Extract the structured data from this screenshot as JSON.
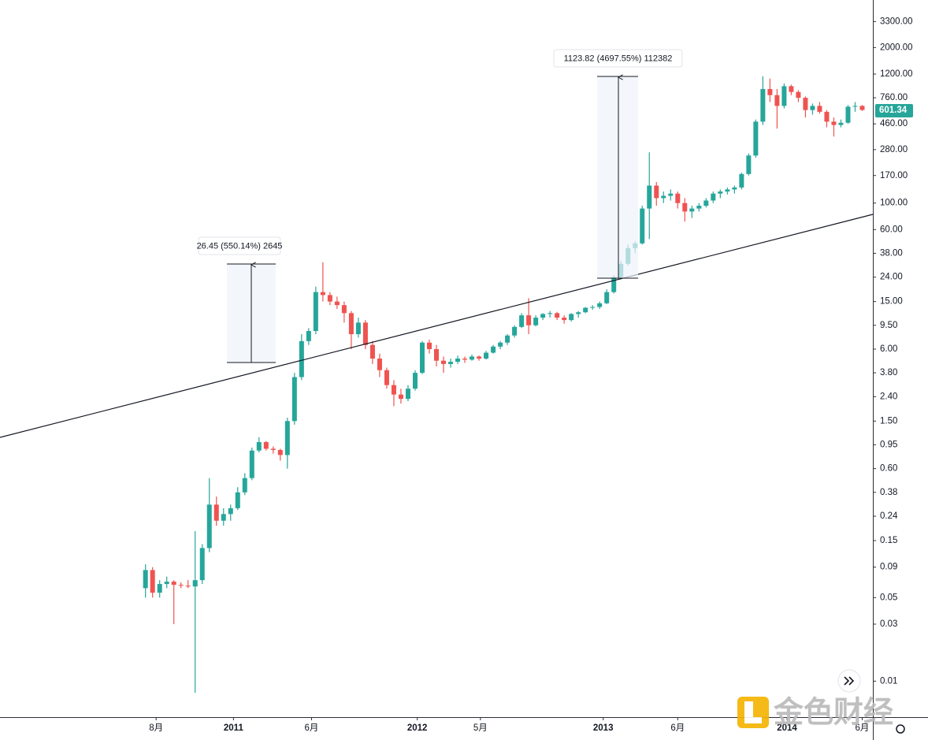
{
  "chart_data": {
    "type": "candlestick",
    "log_scale": true,
    "grid": false,
    "colors": {
      "up": "#26a69a",
      "down": "#ef5350"
    },
    "ylim": [
      0.005,
      5000
    ],
    "yticks": [
      {
        "value": 3300,
        "label": "3300.00"
      },
      {
        "value": 2000,
        "label": "2000.00"
      },
      {
        "value": 1200,
        "label": "1200.00"
      },
      {
        "value": 760,
        "label": "760.00"
      },
      {
        "value": 460,
        "label": "460.00"
      },
      {
        "value": 280,
        "label": "280.00"
      },
      {
        "value": 170,
        "label": "170.00"
      },
      {
        "value": 100,
        "label": "100.00"
      },
      {
        "value": 60,
        "label": "60.00"
      },
      {
        "value": 38,
        "label": "38.00"
      },
      {
        "value": 24,
        "label": "24.00"
      },
      {
        "value": 15,
        "label": "15.00"
      },
      {
        "value": 9.5,
        "label": "9.50"
      },
      {
        "value": 6,
        "label": "6.00"
      },
      {
        "value": 3.8,
        "label": "3.80"
      },
      {
        "value": 2.4,
        "label": "2.40"
      },
      {
        "value": 1.5,
        "label": "1.50"
      },
      {
        "value": 0.95,
        "label": "0.95"
      },
      {
        "value": 0.6,
        "label": "0.60"
      },
      {
        "value": 0.38,
        "label": "0.38"
      },
      {
        "value": 0.24,
        "label": "0.24"
      },
      {
        "value": 0.15,
        "label": "0.15"
      },
      {
        "value": 0.09,
        "label": "0.09"
      },
      {
        "value": 0.05,
        "label": "0.05"
      },
      {
        "value": 0.03,
        "label": "0.03"
      },
      {
        "value": 0.01,
        "label": "0.01"
      }
    ],
    "xlim": [
      -20.5,
      102.5
    ],
    "xticks": [
      {
        "value": 1.5,
        "label": "8月"
      },
      {
        "value": 12.4,
        "label": "2011"
      },
      {
        "value": 23.4,
        "label": "6月"
      },
      {
        "value": 38.3,
        "label": "2012"
      },
      {
        "value": 47.2,
        "label": "5月"
      },
      {
        "value": 64.5,
        "label": "2013"
      },
      {
        "value": 75,
        "label": "6月"
      },
      {
        "value": 90.4,
        "label": "2014"
      },
      {
        "value": 101,
        "label": "6月"
      }
    ],
    "candles": [
      [
        0.06,
        0.095,
        0.05,
        0.085
      ],
      [
        0.085,
        0.09,
        0.05,
        0.055
      ],
      [
        0.055,
        0.07,
        0.05,
        0.065
      ],
      [
        0.065,
        0.075,
        0.06,
        0.068
      ],
      [
        0.068,
        0.07,
        0.03,
        0.064
      ],
      [
        0.064,
        0.067,
        0.06,
        0.063
      ],
      [
        0.063,
        0.07,
        0.06,
        0.062
      ],
      [
        0.062,
        0.18,
        0.008,
        0.07
      ],
      [
        0.07,
        0.14,
        0.065,
        0.13
      ],
      [
        0.13,
        0.5,
        0.12,
        0.3
      ],
      [
        0.3,
        0.35,
        0.2,
        0.22
      ],
      [
        0.22,
        0.28,
        0.2,
        0.25
      ],
      [
        0.25,
        0.3,
        0.22,
        0.28
      ],
      [
        0.28,
        0.42,
        0.27,
        0.38
      ],
      [
        0.38,
        0.55,
        0.36,
        0.5
      ],
      [
        0.5,
        0.9,
        0.48,
        0.85
      ],
      [
        0.85,
        1.1,
        0.82,
        1.0
      ],
      [
        1.0,
        1.02,
        0.85,
        0.88
      ],
      [
        0.88,
        0.92,
        0.8,
        0.86
      ],
      [
        0.86,
        0.88,
        0.7,
        0.78
      ],
      [
        0.78,
        1.6,
        0.6,
        1.5
      ],
      [
        1.5,
        3.8,
        1.4,
        3.5
      ],
      [
        3.5,
        8,
        3.3,
        7
      ],
      [
        7,
        9,
        6.5,
        8.5
      ],
      [
        8.5,
        20,
        8,
        18
      ],
      [
        18,
        32,
        15,
        17
      ],
      [
        17,
        18,
        14,
        15
      ],
      [
        15,
        16.5,
        13,
        14
      ],
      [
        14,
        15,
        10,
        12
      ],
      [
        12,
        12.5,
        6,
        8
      ],
      [
        8,
        11,
        7.5,
        10
      ],
      [
        10,
        10.5,
        6,
        6.5
      ],
      [
        6.5,
        7,
        4.5,
        5
      ],
      [
        5,
        5.5,
        3.5,
        4
      ],
      [
        4,
        4.2,
        2.8,
        3
      ],
      [
        3,
        3.3,
        2,
        2.5
      ],
      [
        2.5,
        2.8,
        2.1,
        2.3
      ],
      [
        2.3,
        3,
        2.2,
        2.8
      ],
      [
        2.8,
        4,
        2.7,
        3.8
      ],
      [
        3.8,
        7,
        3.7,
        6.8
      ],
      [
        6.8,
        7.2,
        5.5,
        6
      ],
      [
        6,
        6.5,
        4.3,
        4.8
      ],
      [
        4.8,
        5.2,
        3.8,
        4.5
      ],
      [
        4.5,
        5,
        4.2,
        4.7
      ],
      [
        4.7,
        5.3,
        4.5,
        5
      ],
      [
        5,
        5.2,
        4.6,
        4.9
      ],
      [
        4.9,
        5.4,
        4.8,
        5.2
      ],
      [
        5.2,
        5.3,
        4.8,
        5
      ],
      [
        5,
        5.8,
        4.9,
        5.6
      ],
      [
        5.6,
        6.5,
        5.5,
        6.3
      ],
      [
        6.3,
        7,
        6,
        6.8
      ],
      [
        6.8,
        8,
        6.5,
        7.8
      ],
      [
        7.8,
        9.5,
        7.5,
        9.2
      ],
      [
        9.2,
        12,
        9,
        11.5
      ],
      [
        11.5,
        16,
        8,
        9.5
      ],
      [
        9.5,
        11.5,
        9.3,
        11
      ],
      [
        11,
        12,
        10.5,
        11.8
      ],
      [
        11.8,
        12.5,
        11,
        12
      ],
      [
        12,
        12.3,
        10.5,
        11
      ],
      [
        11,
        11.5,
        9.8,
        10.5
      ],
      [
        10.5,
        12,
        10.2,
        11.8
      ],
      [
        11.8,
        12.5,
        11,
        12.2
      ],
      [
        12.2,
        13.5,
        12,
        13.3
      ],
      [
        13.3,
        14,
        12.8,
        13.5
      ],
      [
        13.5,
        15,
        13,
        14.5
      ],
      [
        14.5,
        19,
        14.3,
        18
      ],
      [
        18,
        25,
        17.5,
        24
      ],
      [
        24,
        33,
        23,
        31
      ],
      [
        31,
        45,
        30,
        42
      ],
      [
        42,
        48,
        38,
        46
      ],
      [
        46,
        95,
        45,
        90
      ],
      [
        90,
        266,
        50,
        140
      ],
      [
        140,
        150,
        95,
        110
      ],
      [
        110,
        125,
        100,
        115
      ],
      [
        115,
        130,
        105,
        120
      ],
      [
        120,
        125,
        90,
        100
      ],
      [
        100,
        110,
        70,
        85
      ],
      [
        85,
        95,
        75,
        90
      ],
      [
        90,
        100,
        85,
        95
      ],
      [
        95,
        110,
        92,
        105
      ],
      [
        105,
        125,
        100,
        120
      ],
      [
        120,
        130,
        110,
        125
      ],
      [
        125,
        135,
        118,
        130
      ],
      [
        130,
        140,
        120,
        135
      ],
      [
        135,
        180,
        130,
        175
      ],
      [
        175,
        260,
        170,
        250
      ],
      [
        250,
        500,
        240,
        480
      ],
      [
        480,
        1150,
        450,
        900
      ],
      [
        900,
        1100,
        700,
        800
      ],
      [
        800,
        900,
        420,
        650
      ],
      [
        650,
        1000,
        620,
        950
      ],
      [
        950,
        980,
        800,
        850
      ],
      [
        850,
        880,
        700,
        760
      ],
      [
        760,
        780,
        520,
        600
      ],
      [
        600,
        680,
        550,
        650
      ],
      [
        650,
        700,
        560,
        580
      ],
      [
        580,
        600,
        430,
        480
      ],
      [
        480,
        520,
        360,
        450
      ],
      [
        450,
        500,
        430,
        470
      ],
      [
        470,
        660,
        460,
        640
      ],
      [
        640,
        700,
        580,
        650
      ],
      [
        650,
        660,
        590,
        601.34
      ]
    ],
    "annotations": [
      {
        "label": "26.45 (550.14%) 2645"
      },
      {
        "label": "1123.82 (4697.55%) 112382"
      }
    ],
    "watermark": "金色财经"
  }
}
